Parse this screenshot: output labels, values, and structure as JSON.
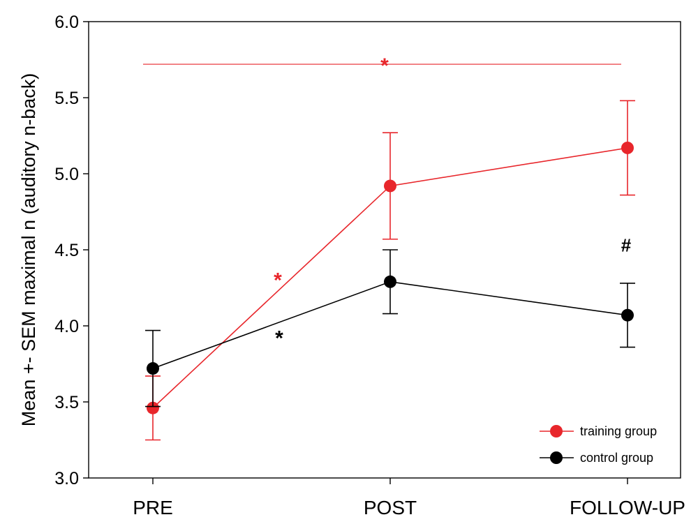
{
  "chart_data": {
    "type": "line",
    "title": "",
    "xlabel": "",
    "ylabel": "Mean +- SEM maximal n (auditory n-back)",
    "categories": [
      "PRE",
      "POST",
      "FOLLOW-UP"
    ],
    "ylim": [
      3.0,
      6.0
    ],
    "yticks": [
      "3.0",
      "3.5",
      "4.0",
      "4.5",
      "5.0",
      "5.5",
      "6.0"
    ],
    "grid": false,
    "legend_position": "bottom-right",
    "series": [
      {
        "name": "training group",
        "color": "#e8262b",
        "values": [
          3.46,
          4.92,
          5.17
        ],
        "sem": [
          0.21,
          0.35,
          0.31
        ]
      },
      {
        "name": "control group",
        "color": "#000000",
        "values": [
          3.72,
          4.29,
          4.07
        ],
        "sem": [
          0.25,
          0.21,
          0.21
        ]
      }
    ],
    "annotations": [
      {
        "text": "*",
        "color": "#e8262b",
        "y": 5.72,
        "note": "training PRE vs FOLLOW-UP"
      },
      {
        "text": "*",
        "color": "#e8262b",
        "y": 4.31,
        "note": "training PRE vs POST"
      },
      {
        "text": "*",
        "color": "#000000",
        "y": 3.93,
        "note": "control PRE vs POST"
      },
      {
        "text": "#",
        "color": "#000000",
        "y": 4.53,
        "note": "group difference at FOLLOW-UP"
      }
    ],
    "significance_bar": {
      "color": "#e8262b",
      "y": 5.72
    }
  }
}
